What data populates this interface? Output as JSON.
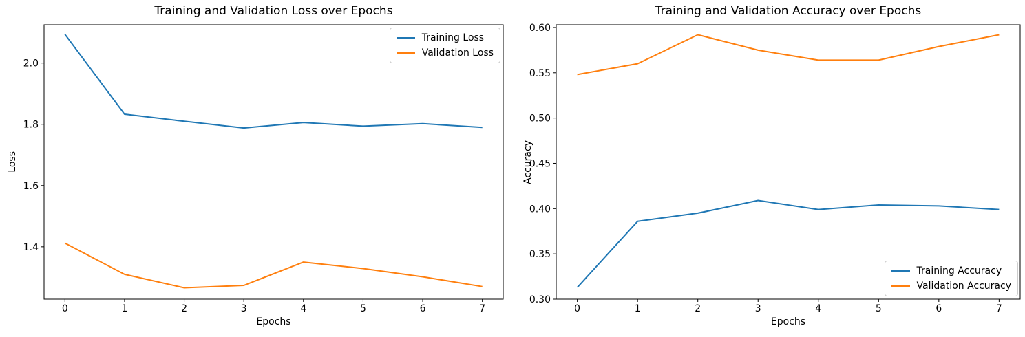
{
  "figure": {
    "background": "#ffffff",
    "text_color": "#000000",
    "spine_color": "#000000"
  },
  "chart_data": [
    {
      "type": "line",
      "title": "Training and Validation Loss over Epochs",
      "xlabel": "Epochs",
      "ylabel": "Loss",
      "x": [
        0,
        1,
        2,
        3,
        4,
        5,
        6,
        7
      ],
      "xlim": [
        -0.35,
        7.35
      ],
      "ylim": [
        1.229,
        2.125
      ],
      "xticks": [
        0,
        1,
        2,
        3,
        4,
        5,
        6,
        7
      ],
      "xtick_labels": [
        "0",
        "1",
        "2",
        "3",
        "4",
        "5",
        "6",
        "7"
      ],
      "yticks": [
        1.4,
        1.6,
        1.8,
        2.0
      ],
      "ytick_labels": [
        "1.4",
        "1.6",
        "1.8",
        "2.0"
      ],
      "grid": false,
      "legend_position": "upper-right",
      "series": [
        {
          "name": "Training Loss",
          "color": "#1f77b4",
          "values": [
            2.094,
            1.833,
            1.81,
            1.788,
            1.806,
            1.794,
            1.802,
            1.79
          ]
        },
        {
          "name": "Validation Loss",
          "color": "#ff7f0e",
          "values": [
            1.412,
            1.31,
            1.266,
            1.274,
            1.35,
            1.329,
            1.302,
            1.27
          ]
        }
      ]
    },
    {
      "type": "line",
      "title": "Training and Validation Accuracy over Epochs",
      "xlabel": "Epochs",
      "ylabel": "Accuracy",
      "x": [
        0,
        1,
        2,
        3,
        4,
        5,
        6,
        7
      ],
      "xlim": [
        -0.35,
        7.35
      ],
      "ylim": [
        0.3,
        0.603
      ],
      "xticks": [
        0,
        1,
        2,
        3,
        4,
        5,
        6,
        7
      ],
      "xtick_labels": [
        "0",
        "1",
        "2",
        "3",
        "4",
        "5",
        "6",
        "7"
      ],
      "yticks": [
        0.3,
        0.35,
        0.4,
        0.45,
        0.5,
        0.55,
        0.6
      ],
      "ytick_labels": [
        "0.30",
        "0.35",
        "0.40",
        "0.45",
        "0.50",
        "0.55",
        "0.60"
      ],
      "grid": false,
      "legend_position": "lower-right",
      "series": [
        {
          "name": "Training Accuracy",
          "color": "#1f77b4",
          "values": [
            0.313,
            0.386,
            0.395,
            0.409,
            0.399,
            0.404,
            0.403,
            0.399
          ]
        },
        {
          "name": "Validation Accuracy",
          "color": "#ff7f0e",
          "values": [
            0.548,
            0.56,
            0.592,
            0.575,
            0.564,
            0.564,
            0.579,
            0.592
          ]
        }
      ]
    }
  ]
}
